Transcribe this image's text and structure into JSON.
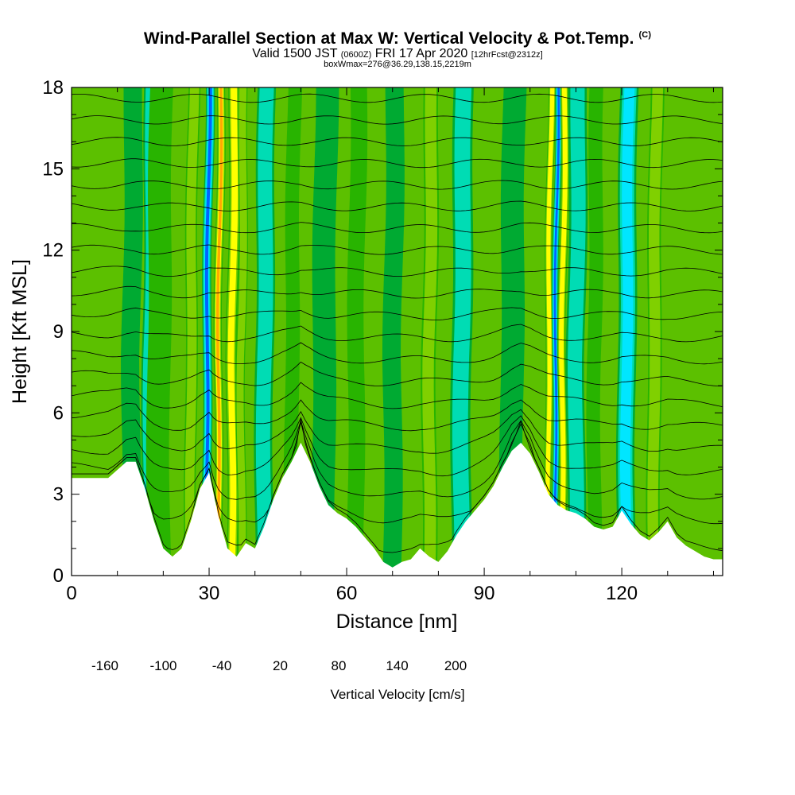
{
  "title": {
    "main": "Wind-Parallel Section at Max W: Vertical Velocity & Pot.Temp.",
    "copyright": "(C)",
    "valid_prefix": "Valid 1500 JST",
    "valid_utc": "(0600Z)",
    "valid_date": "FRI 17 Apr 2020",
    "forecast": "[12hrFcst@2312z]",
    "box": "boxWmax=276@36.29,138.15,2219m"
  },
  "chart_data": {
    "type": "heatmap",
    "title": "Wind-Parallel Section at Max W: Vertical Velocity & Pot.Temp.",
    "xlabel": "Distance [nm]",
    "ylabel": "Height [Kft MSL]",
    "xlim": [
      0,
      142
    ],
    "ylim": [
      0,
      18
    ],
    "x_ticks": [
      "0",
      "30",
      "60",
      "90",
      "120"
    ],
    "y_ticks": [
      "0",
      "3",
      "6",
      "9",
      "12",
      "15",
      "18"
    ],
    "colorbar": {
      "title": "Vertical Velocity [cm/s]",
      "labels": [
        "-160",
        "-100",
        "-40",
        "20",
        "80",
        "140",
        "200"
      ],
      "colors": [
        "#0000ff",
        "#0064ff",
        "#00a0ff",
        "#00e6ff",
        "#00dcb4",
        "#00c864",
        "#00aa32",
        "#28b400",
        "#80d000",
        "#c8e600",
        "#ffff00",
        "#ffd200",
        "#ffaa00",
        "#ff8c00",
        "#ff5000",
        "#ff0000",
        "#dc0000",
        "#b40050",
        "#8c0078",
        "#5a0096"
      ]
    },
    "terrain_kft": {
      "x": [
        0,
        8,
        12,
        14,
        16,
        18,
        20,
        22,
        24,
        26,
        28,
        30,
        32,
        34,
        36,
        38,
        40,
        42,
        44,
        46,
        48,
        50,
        52,
        54,
        56,
        58,
        60,
        62,
        64,
        66,
        68,
        70,
        72,
        74,
        76,
        78,
        80,
        82,
        84,
        86,
        88,
        90,
        92,
        94,
        96,
        98,
        100,
        102,
        104,
        106,
        108,
        110,
        112,
        114,
        116,
        118,
        120,
        122,
        124,
        126,
        128,
        130,
        132,
        134,
        136,
        138,
        140,
        142
      ],
      "y": [
        3.6,
        3.6,
        4.2,
        4.2,
        3.2,
        2.0,
        1.0,
        0.7,
        1.0,
        2.0,
        3.2,
        3.8,
        2.2,
        1.0,
        0.7,
        1.2,
        1.0,
        1.8,
        2.8,
        3.6,
        4.2,
        4.9,
        4.2,
        3.3,
        2.6,
        2.3,
        2.1,
        1.8,
        1.4,
        1.0,
        0.5,
        0.3,
        0.5,
        0.6,
        1.0,
        0.7,
        0.5,
        0.9,
        1.5,
        2.0,
        2.4,
        2.8,
        3.3,
        4.0,
        4.6,
        4.9,
        4.5,
        3.8,
        3.0,
        2.6,
        2.4,
        2.3,
        2.1,
        1.8,
        1.7,
        1.8,
        2.4,
        1.9,
        1.5,
        1.3,
        1.6,
        2.0,
        1.4,
        1.1,
        0.9,
        0.7,
        0.6,
        0.6
      ]
    },
    "velocity_bands": [
      {
        "x": 13,
        "w": 2,
        "v": -30
      },
      {
        "x": 17,
        "w": 1.6,
        "v": -90
      },
      {
        "x": 19,
        "w": 2.5,
        "v": 10
      },
      {
        "x": 26,
        "w": 1.3,
        "v": 70
      },
      {
        "x": 29.5,
        "w": 1.0,
        "v": -160
      },
      {
        "x": 32,
        "w": 0.9,
        "v": 180
      },
      {
        "x": 35,
        "w": 1.2,
        "v": 150
      },
      {
        "x": 37,
        "w": 1.0,
        "v": 100
      },
      {
        "x": 42,
        "w": 2.0,
        "v": -60
      },
      {
        "x": 48,
        "w": 1.5,
        "v": 30
      },
      {
        "x": 55,
        "w": 2.5,
        "v": -40
      },
      {
        "x": 62,
        "w": 1.8,
        "v": 50
      },
      {
        "x": 70,
        "w": 2.0,
        "v": -30
      },
      {
        "x": 78,
        "w": 1.6,
        "v": 80
      },
      {
        "x": 85,
        "w": 2.2,
        "v": -50
      },
      {
        "x": 96,
        "w": 2.5,
        "v": -30
      },
      {
        "x": 104,
        "w": 0.8,
        "v": 110
      },
      {
        "x": 105.5,
        "w": 0.7,
        "v": -160
      },
      {
        "x": 107,
        "w": 0.9,
        "v": 120
      },
      {
        "x": 110,
        "w": 2.0,
        "v": -50
      },
      {
        "x": 114,
        "w": 1.5,
        "v": 20
      },
      {
        "x": 121,
        "w": 2.0,
        "v": -100
      },
      {
        "x": 127,
        "w": 1.5,
        "v": 60
      }
    ],
    "theta_contours": {
      "levels_kft": [
        1.5,
        2.4,
        3.2,
        4.0,
        4.8,
        5.6,
        6.4,
        7.2,
        8.0,
        8.8,
        9.6,
        10.4,
        11.2,
        12.0,
        12.8,
        13.6,
        14.4,
        15.2,
        16.0,
        16.8,
        17.6
      ]
    }
  }
}
